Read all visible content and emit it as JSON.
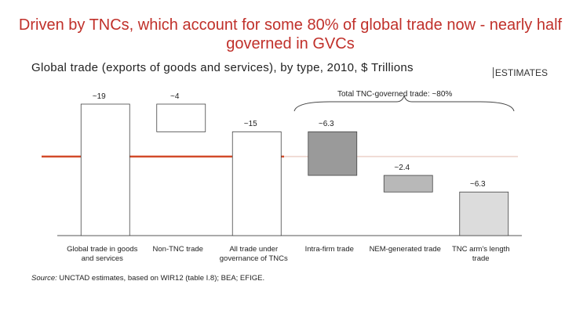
{
  "chart_data": {
    "type": "waterfall",
    "title": "Driven by TNCs, which account for some 80% of global trade now - nearly half governed in GVCs",
    "subtitle": "Global trade (exports of goods and services), by type, 2010, $ Trillions",
    "tag": "ESTIMATES",
    "annotation": "Total TNC-governed trade: ~80%",
    "categories": [
      "Global trade in goods and services",
      "Non-TNC trade",
      "All trade under governance of TNCs",
      "Intra-firm trade",
      "NEM-generated trade",
      "TNC arm's length trade"
    ],
    "values": [
      19,
      4,
      15,
      6.3,
      2.4,
      6.3
    ],
    "value_labels": [
      "~19",
      "~4",
      "~15",
      "~6.3",
      "~2.4",
      "~6.3"
    ],
    "colors": [
      "#ffffff",
      "#ffffff",
      "#ffffff",
      "#9a9a9a",
      "#b8b8b8",
      "#dcdcdc"
    ],
    "source_label": "Source:",
    "source": "UNCTAD estimates, based on WIR12 (table I.8); BEA; EFIGE."
  }
}
